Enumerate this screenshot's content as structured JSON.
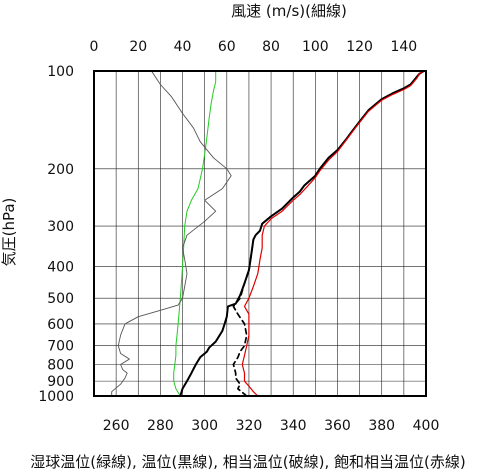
{
  "chart_data": {
    "type": "line",
    "top_axis_title": "風速 (m/s)(細線)",
    "y_axis_title": "気圧(hPa)",
    "bottom_axis_title": "湿球温位(緑線), 温位(黒線), 相当温位(破線), 飽和相当温位(赤線)",
    "pressure_axis": {
      "scale": "log",
      "range": [
        1000,
        100
      ],
      "ticks": [
        100,
        200,
        300,
        400,
        500,
        600,
        700,
        800,
        900,
        1000
      ]
    },
    "top_axis": {
      "range": [
        0,
        150
      ],
      "ticks": [
        0,
        20,
        40,
        60,
        80,
        100,
        120,
        140
      ]
    },
    "bottom_axis": {
      "range": [
        250,
        400
      ],
      "ticks": [
        260,
        280,
        300,
        320,
        340,
        360,
        380,
        400
      ]
    },
    "grid": true,
    "series": [
      {
        "name": "湿球温位",
        "axis": "bottom",
        "color": "#22cc22",
        "width": 1.0,
        "dash": "",
        "points": [
          [
            289,
            1000
          ],
          [
            287,
            950
          ],
          [
            286,
            900
          ],
          [
            286,
            850
          ],
          [
            286.5,
            800
          ],
          [
            287,
            750
          ],
          [
            287,
            700
          ],
          [
            287.5,
            650
          ],
          [
            288,
            600
          ],
          [
            288.5,
            550
          ],
          [
            289,
            500
          ],
          [
            289.5,
            450
          ],
          [
            290,
            400
          ],
          [
            290.5,
            350
          ],
          [
            291,
            300
          ],
          [
            292,
            270
          ],
          [
            294,
            250
          ],
          [
            297,
            230
          ],
          [
            298,
            215
          ],
          [
            299,
            200
          ],
          [
            300,
            180
          ],
          [
            301,
            160
          ],
          [
            302,
            140
          ],
          [
            303,
            125
          ],
          [
            304,
            115
          ],
          [
            305,
            108
          ],
          [
            305,
            100
          ]
        ]
      },
      {
        "name": "温位",
        "axis": "bottom",
        "color": "#000000",
        "width": 2.0,
        "dash": "",
        "points": [
          [
            289,
            1000
          ],
          [
            290,
            950
          ],
          [
            292,
            900
          ],
          [
            294,
            850
          ],
          [
            296,
            800
          ],
          [
            298,
            760
          ],
          [
            301,
            730
          ],
          [
            302,
            710
          ],
          [
            305,
            680
          ],
          [
            308,
            630
          ],
          [
            309,
            600
          ],
          [
            310,
            570
          ],
          [
            310.5,
            530
          ],
          [
            314,
            520
          ],
          [
            316,
            490
          ],
          [
            318,
            450
          ],
          [
            320,
            410
          ],
          [
            321,
            370
          ],
          [
            322,
            330
          ],
          [
            323,
            320
          ],
          [
            325,
            310
          ],
          [
            326,
            295
          ],
          [
            330,
            280
          ],
          [
            335,
            265
          ],
          [
            340,
            245
          ],
          [
            343,
            235
          ],
          [
            345,
            225
          ],
          [
            350,
            210
          ],
          [
            352,
            200
          ],
          [
            356,
            185
          ],
          [
            360,
            175
          ],
          [
            364,
            162
          ],
          [
            367,
            152
          ],
          [
            370,
            143
          ],
          [
            374,
            132
          ],
          [
            380,
            122
          ],
          [
            385,
            117
          ],
          [
            390,
            113
          ],
          [
            393,
            110
          ],
          [
            394,
            108
          ],
          [
            396,
            104
          ],
          [
            397,
            102
          ],
          [
            399,
            100
          ]
        ]
      },
      {
        "name": "相当温位",
        "axis": "bottom",
        "color": "#000000",
        "width": 1.7,
        "dash": "5,4",
        "points": [
          [
            319,
            1000
          ],
          [
            315,
            950
          ],
          [
            316,
            920
          ],
          [
            314,
            880
          ],
          [
            314,
            850
          ],
          [
            313,
            800
          ],
          [
            315,
            760
          ],
          [
            316,
            730
          ],
          [
            318,
            700
          ],
          [
            319,
            650
          ],
          [
            318,
            600
          ],
          [
            315,
            560
          ],
          [
            313,
            530
          ],
          [
            316,
            500
          ],
          [
            318,
            450
          ],
          [
            320,
            410
          ],
          [
            321,
            370
          ],
          [
            322,
            330
          ]
        ]
      },
      {
        "name": "飽和相当温位",
        "axis": "bottom",
        "color": "#e00000",
        "width": 1.2,
        "dash": "",
        "points": [
          [
            324,
            1000
          ],
          [
            322,
            970
          ],
          [
            321,
            950
          ],
          [
            318,
            900
          ],
          [
            318,
            850
          ],
          [
            317,
            800
          ],
          [
            318,
            750
          ],
          [
            319,
            700
          ],
          [
            320,
            650
          ],
          [
            320,
            600
          ],
          [
            320,
            560
          ],
          [
            318,
            530
          ],
          [
            320,
            500
          ],
          [
            322,
            460
          ],
          [
            324,
            420
          ],
          [
            325,
            380
          ],
          [
            326,
            350
          ],
          [
            326,
            320
          ],
          [
            327,
            300
          ],
          [
            330,
            285
          ],
          [
            335,
            270
          ],
          [
            340,
            250
          ],
          [
            343,
            240
          ],
          [
            346,
            228
          ],
          [
            350,
            213
          ],
          [
            352,
            203
          ],
          [
            356,
            188
          ],
          [
            360,
            177
          ],
          [
            364,
            163
          ],
          [
            367,
            153
          ],
          [
            370,
            144
          ],
          [
            374,
            133
          ],
          [
            380,
            123
          ],
          [
            385,
            118
          ],
          [
            390,
            114
          ],
          [
            393,
            111
          ],
          [
            394,
            109
          ],
          [
            396,
            105
          ],
          [
            397,
            102
          ],
          [
            399,
            100
          ]
        ]
      },
      {
        "name": "風速",
        "axis": "top",
        "color": "#555555",
        "width": 0.9,
        "dash": "",
        "points": [
          [
            8,
            1000
          ],
          [
            8,
            970
          ],
          [
            12,
            920
          ],
          [
            14,
            880
          ],
          [
            15,
            850
          ],
          [
            13,
            830
          ],
          [
            12,
            800
          ],
          [
            16,
            770
          ],
          [
            12,
            740
          ],
          [
            11,
            700
          ],
          [
            12,
            650
          ],
          [
            14,
            600
          ],
          [
            20,
            570
          ],
          [
            30,
            545
          ],
          [
            38,
            525
          ],
          [
            40,
            500
          ],
          [
            41,
            460
          ],
          [
            42,
            420
          ],
          [
            41,
            380
          ],
          [
            40,
            350
          ],
          [
            42,
            320
          ],
          [
            50,
            290
          ],
          [
            55,
            270
          ],
          [
            50,
            250
          ],
          [
            58,
            230
          ],
          [
            62,
            210
          ],
          [
            60,
            200
          ],
          [
            54,
            185
          ],
          [
            48,
            165
          ],
          [
            45,
            150
          ],
          [
            40,
            135
          ],
          [
            35,
            120
          ],
          [
            30,
            110
          ],
          [
            26,
            100
          ]
        ]
      }
    ]
  }
}
